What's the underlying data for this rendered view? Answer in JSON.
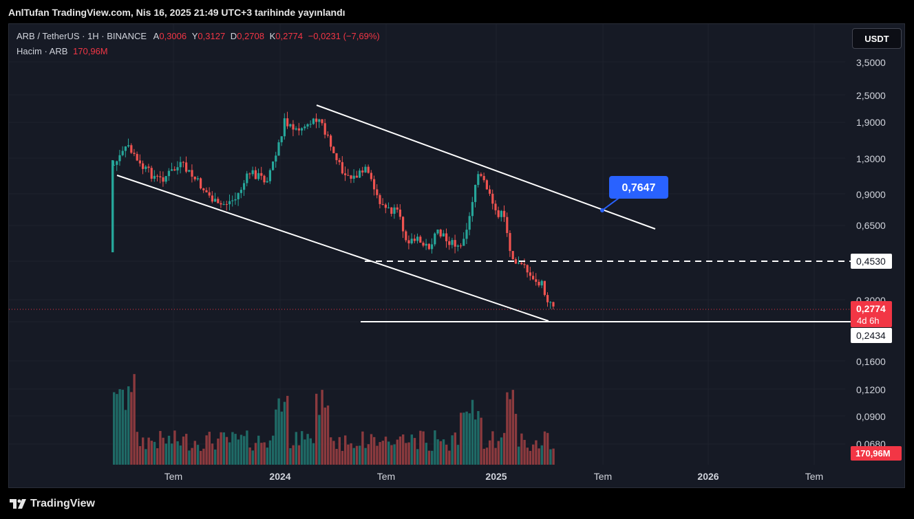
{
  "header": {
    "published": "AnlTufan TradingView.com, Nis 16, 2025 21:49 UTC+3 tarihinde yayınlandı"
  },
  "legend": {
    "symbol": "ARB / TetherUS · 1H · BINANCE",
    "open_label": "A",
    "open": "0,3006",
    "high_label": "Y",
    "high": "0,3127",
    "low_label": "D",
    "low": "0,2708",
    "close_label": "K",
    "close": "0,2774",
    "change": "−0,0231 (−7,69%)",
    "volume_label": "Hacim · ARB",
    "volume": "170,96M"
  },
  "currency_button": "USDT",
  "footer": {
    "brand": "TradingView"
  },
  "colors": {
    "up": "#26a69a",
    "down": "#ef5350",
    "up_volume": "#1f6a66",
    "down_volume": "#8b3a3e",
    "callout": "#2962ff",
    "price_tag": "#f23645"
  },
  "chart_data": {
    "type": "candlestick",
    "price_axis_ticks": [
      "3,5000",
      "2,5000",
      "1,9000",
      "1,3000",
      "0,9000",
      "0,6500",
      "0,3000"
    ],
    "volume_axis_ticks": [
      "0,1600",
      "0,1200",
      "0,0900",
      "0,0680"
    ],
    "time_axis_labels": [
      "Tem",
      "2024",
      "Tem",
      "2025",
      "Tem",
      "2026",
      "Tem"
    ],
    "price_tags": {
      "level_upper": "0,4530",
      "level_lower": "0,2434",
      "last_price": "0,2774",
      "countdown": "4d 6h",
      "volume_last": "170,96M"
    },
    "callout": "0,7647",
    "annotations": [
      "descending channel",
      "horizontal support 0,2434",
      "dashed level 0,4530"
    ]
  }
}
